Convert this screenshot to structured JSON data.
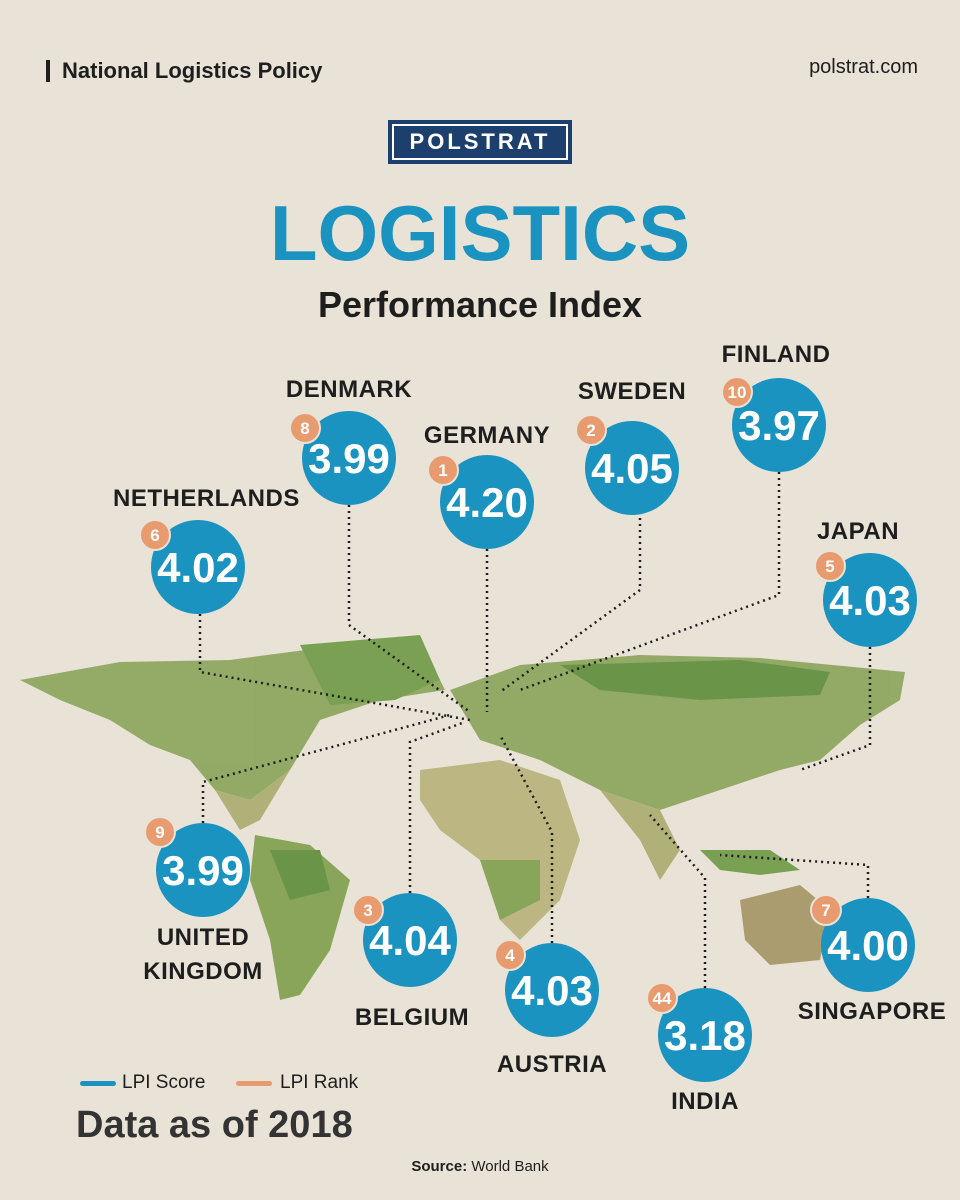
{
  "header": {
    "section": "National Logistics Policy",
    "site": "polstrat.com",
    "brand": "POLSTRAT",
    "title": "LOGISTICS",
    "subtitle": "Performance Index"
  },
  "countries": [
    {
      "name": "DENMARK",
      "score": "3.99",
      "rank": "8"
    },
    {
      "name": "GERMANY",
      "score": "4.20",
      "rank": "1"
    },
    {
      "name": "SWEDEN",
      "score": "4.05",
      "rank": "2"
    },
    {
      "name": "FINLAND",
      "score": "3.97",
      "rank": "10"
    },
    {
      "name": "NETHERLANDS",
      "score": "4.02",
      "rank": "6"
    },
    {
      "name": "JAPAN",
      "score": "4.03",
      "rank": "5"
    },
    {
      "name": "UNITED KINGDOM",
      "score": "3.99",
      "rank": "9"
    },
    {
      "name": "BELGIUM",
      "score": "4.04",
      "rank": "3"
    },
    {
      "name": "AUSTRIA",
      "score": "4.03",
      "rank": "4"
    },
    {
      "name": "INDIA",
      "score": "3.18",
      "rank": "44"
    },
    {
      "name": "SINGAPORE",
      "score": "4.00",
      "rank": "7"
    }
  ],
  "legend": {
    "score": "LPI Score",
    "rank": "LPI Rank"
  },
  "note": "Data as of 2018",
  "source": {
    "label": "Source:",
    "value": "World Bank"
  }
}
